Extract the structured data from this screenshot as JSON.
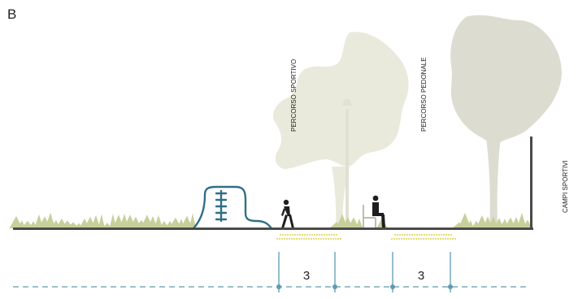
{
  "section_letter": "B",
  "labels": {
    "percorso_sportivo": "PERCORSO SPORTIVO",
    "percorso_pedonale": "PERCORSO PEDONALE",
    "campi_sportivi": "CAMPI SPORTIVI"
  },
  "dimensions": [
    {
      "value": "3"
    },
    {
      "value": "3"
    }
  ],
  "colors": {
    "ground": "#4a4a4a",
    "grass": "#c8cf9a",
    "tree_canopy": "#e9eadc",
    "tree_canopy_right": "#dcdcd0",
    "play_structure": "#2f6f86",
    "paving_dots": "#e6dc7a",
    "dimension_line": "#5f9bb0",
    "person": "#1e1e1e"
  }
}
